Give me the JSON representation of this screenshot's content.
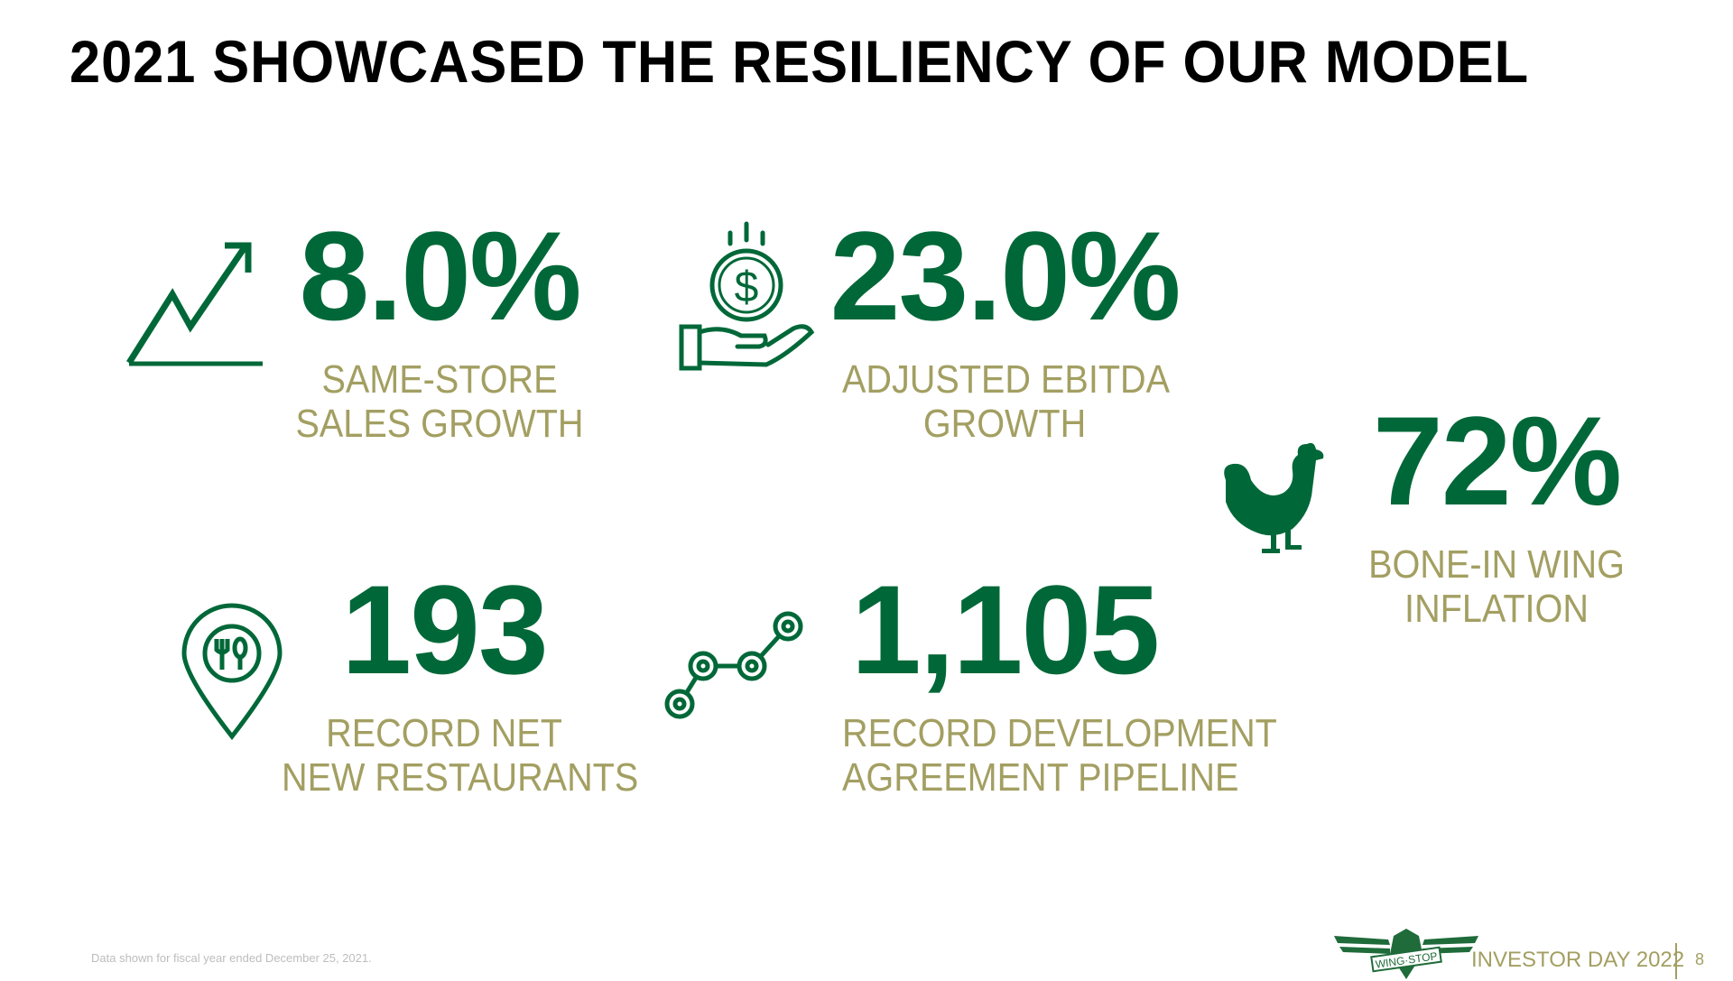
{
  "title": "2021 SHOWCASED THE RESILIENCY OF OUR MODEL",
  "colors": {
    "primary_green": "#006838",
    "gold": "#A39F62"
  },
  "metrics": [
    {
      "value": "8.0%",
      "label_line1": "SAME-STORE",
      "label_line2": "SALES GROWTH",
      "icon": "trend-up-chart-icon"
    },
    {
      "value": "23.0%",
      "label_line1": "ADJUSTED EBITDA",
      "label_line2": "GROWTH",
      "icon": "hand-holding-coin-icon"
    },
    {
      "value": "72%",
      "label_line1": "BONE-IN WING",
      "label_line2": "INFLATION",
      "icon": "chicken-icon"
    },
    {
      "value": "193",
      "label_line1": "RECORD NET",
      "label_line2": "NEW RESTAURANTS",
      "icon": "restaurant-location-pin-icon"
    },
    {
      "value": "1,105",
      "label_line1": "RECORD DEVELOPMENT",
      "label_line2": "AGREEMENT PIPELINE",
      "icon": "pipeline-nodes-icon"
    }
  ],
  "footer": {
    "note": "Data shown for fiscal year ended December 25, 2021.",
    "logo_text": "WING-STOP",
    "event": "INVESTOR DAY 2022",
    "page_number": "8"
  }
}
